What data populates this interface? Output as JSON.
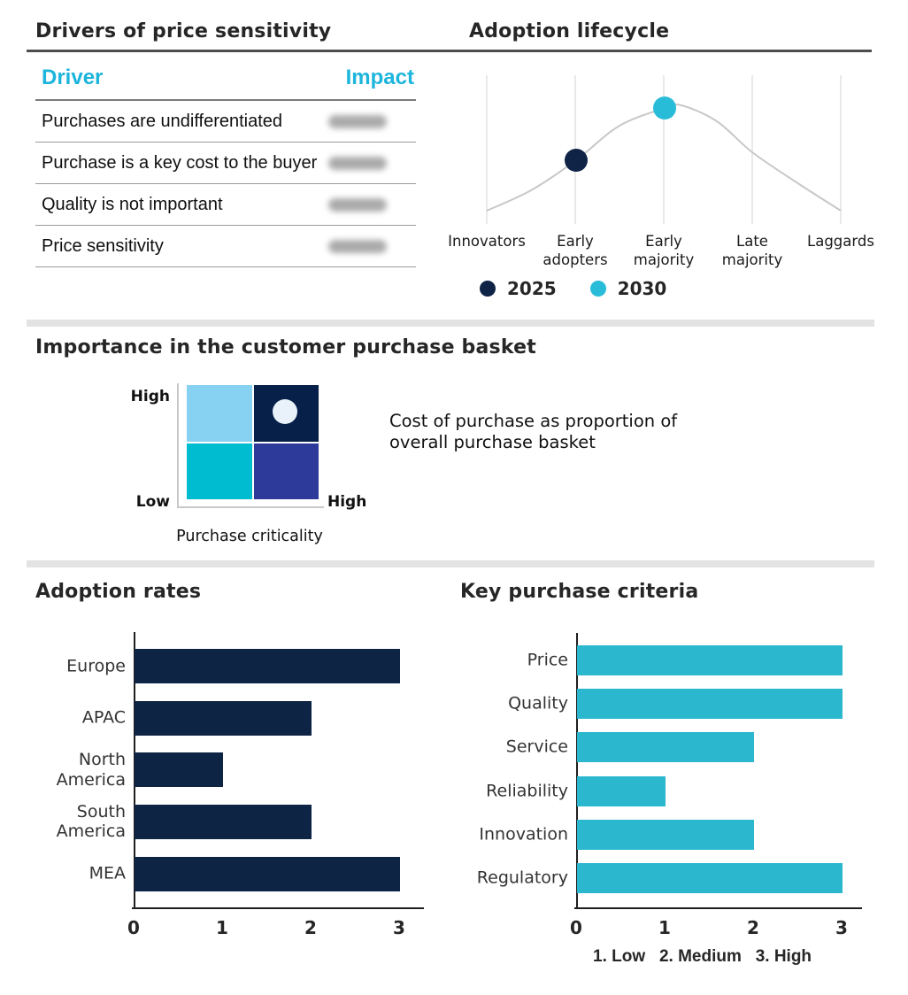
{
  "colors": {
    "accent_cyan": "#1cb5dc",
    "navy": "#0d2444",
    "bar_cyan": "#2bb8cf",
    "curve_gray": "#c8c8c8",
    "gridline_gray": "#e2e2e2",
    "divider_gray": "#e3e3e3"
  },
  "drivers_table": {
    "title": "Drivers of price sensitivity",
    "columns": [
      "Driver",
      "Impact"
    ],
    "rows": [
      {
        "driver": "Purchases are undifferentiated",
        "impact": "redacted"
      },
      {
        "driver": "Purchase is a key cost to the buyer",
        "impact": "redacted"
      },
      {
        "driver": "Quality is not important",
        "impact": "redacted"
      },
      {
        "driver": "Price sensitivity",
        "impact": "redacted"
      }
    ]
  },
  "basket": {
    "title": "Importance in the customer purchase basket",
    "y_axis_top_label": "High",
    "y_axis_bottom_label": "Low",
    "x_axis_right_label": "High",
    "x_axis_title": "Purchase criticality",
    "annotation": "Cost of purchase as proportion of\noverall purchase basket",
    "quadrants": {
      "top_left": "#87d2f2",
      "top_right": "#06204a",
      "bottom_left": "#00bcd1",
      "bottom_right": "#2e3a9a"
    },
    "marker": {
      "quadrant": "top_right",
      "color": "#e9f2fb"
    }
  },
  "chart_data": [
    {
      "type": "scatter",
      "title": "Adoption lifecycle",
      "x_categories": [
        "Innovators",
        "Early adopters",
        "Early majority",
        "Late majority",
        "Laggards"
      ],
      "curve": "bell-shaped adoption lifecycle reference curve",
      "points": [
        {
          "label": "2025",
          "category": "Early adopters",
          "color": "#0e2345"
        },
        {
          "label": "2030",
          "category": "Early majority",
          "color": "#29bcd8"
        }
      ],
      "legend": [
        "2025",
        "2030"
      ],
      "legend_position": "bottom",
      "grid": "vertical gridlines at each category"
    },
    {
      "type": "bar",
      "title": "Adoption rates",
      "orientation": "horizontal",
      "categories": [
        "Europe",
        "APAC",
        "North America",
        "South America",
        "MEA"
      ],
      "values": [
        3,
        2,
        1,
        2,
        3
      ],
      "xlim": [
        0,
        3
      ],
      "x_ticks": [
        "0",
        "1",
        "2",
        "3"
      ],
      "bar_color": "#0d2444"
    },
    {
      "type": "bar",
      "title": "Key purchase criteria",
      "orientation": "horizontal",
      "categories": [
        "Price",
        "Quality",
        "Service",
        "Reliability",
        "Innovation",
        "Regulatory"
      ],
      "values": [
        3,
        3,
        2,
        1,
        2,
        3
      ],
      "xlim": [
        0,
        3
      ],
      "x_ticks": [
        "0",
        "1",
        "2",
        "3"
      ],
      "bar_color": "#2bb8cf",
      "footnote": "1. Low   2. Medium   3. High"
    }
  ]
}
